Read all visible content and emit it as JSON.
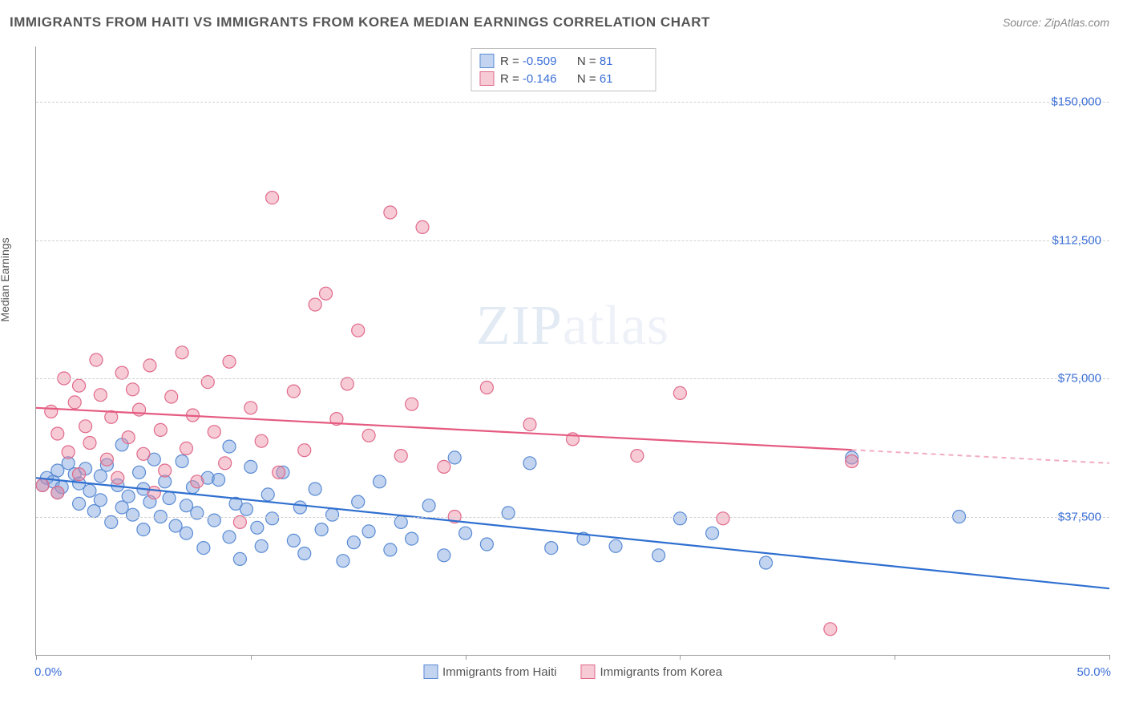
{
  "title": "IMMIGRANTS FROM HAITI VS IMMIGRANTS FROM KOREA MEDIAN EARNINGS CORRELATION CHART",
  "source": "Source: ZipAtlas.com",
  "ylabel": "Median Earnings",
  "watermark_a": "ZIP",
  "watermark_b": "atlas",
  "chart": {
    "type": "scatter",
    "xlim": [
      0,
      50
    ],
    "ylim": [
      0,
      165000
    ],
    "x_label_min": "0.0%",
    "x_label_max": "50.0%",
    "x_ticks": [
      0,
      10,
      20,
      30,
      40,
      50
    ],
    "y_gridlines": [
      37500,
      75000,
      112500,
      150000
    ],
    "y_gridline_labels": [
      "$37,500",
      "$75,000",
      "$112,500",
      "$150,000"
    ],
    "grid_color": "#d0d0d0",
    "background_color": "#ffffff",
    "series": [
      {
        "name": "Immigrants from Haiti",
        "fill": "rgba(120,160,220,0.45)",
        "stroke": "#5a8bd4",
        "line_color": "#2f6fd0",
        "R": "-0.509",
        "N": "81",
        "trend": {
          "x1": 0,
          "y1": 48000,
          "x2": 50,
          "y2": 18000,
          "dashed_from_x": null
        },
        "points": [
          [
            0.3,
            46000
          ],
          [
            0.5,
            48000
          ],
          [
            0.8,
            47000
          ],
          [
            1,
            50000
          ],
          [
            1,
            44000
          ],
          [
            1.2,
            45500
          ],
          [
            1.5,
            52000
          ],
          [
            1.8,
            49000
          ],
          [
            2,
            41000
          ],
          [
            2,
            46500
          ],
          [
            2.3,
            50500
          ],
          [
            2.5,
            44500
          ],
          [
            2.7,
            39000
          ],
          [
            3,
            48500
          ],
          [
            3,
            42000
          ],
          [
            3.3,
            51500
          ],
          [
            3.5,
            36000
          ],
          [
            3.8,
            46000
          ],
          [
            4,
            57000
          ],
          [
            4,
            40000
          ],
          [
            4.3,
            43000
          ],
          [
            4.5,
            38000
          ],
          [
            4.8,
            49500
          ],
          [
            5,
            45000
          ],
          [
            5,
            34000
          ],
          [
            5.3,
            41500
          ],
          [
            5.5,
            53000
          ],
          [
            5.8,
            37500
          ],
          [
            6,
            47000
          ],
          [
            6.2,
            42500
          ],
          [
            6.5,
            35000
          ],
          [
            6.8,
            52500
          ],
          [
            7,
            40500
          ],
          [
            7,
            33000
          ],
          [
            7.3,
            45500
          ],
          [
            7.5,
            38500
          ],
          [
            7.8,
            29000
          ],
          [
            8,
            48000
          ],
          [
            8.3,
            36500
          ],
          [
            8.5,
            47500
          ],
          [
            9,
            56500
          ],
          [
            9,
            32000
          ],
          [
            9.3,
            41000
          ],
          [
            9.5,
            26000
          ],
          [
            9.8,
            39500
          ],
          [
            10,
            51000
          ],
          [
            10.3,
            34500
          ],
          [
            10.5,
            29500
          ],
          [
            10.8,
            43500
          ],
          [
            11,
            37000
          ],
          [
            11.5,
            49500
          ],
          [
            12,
            31000
          ],
          [
            12.3,
            40000
          ],
          [
            12.5,
            27500
          ],
          [
            13,
            45000
          ],
          [
            13.3,
            34000
          ],
          [
            13.8,
            38000
          ],
          [
            14.3,
            25500
          ],
          [
            14.8,
            30500
          ],
          [
            15,
            41500
          ],
          [
            15.5,
            33500
          ],
          [
            16,
            47000
          ],
          [
            16.5,
            28500
          ],
          [
            17,
            36000
          ],
          [
            17.5,
            31500
          ],
          [
            18.3,
            40500
          ],
          [
            19,
            27000
          ],
          [
            19.5,
            53500
          ],
          [
            20,
            33000
          ],
          [
            21,
            30000
          ],
          [
            22,
            38500
          ],
          [
            23,
            52000
          ],
          [
            24,
            29000
          ],
          [
            25.5,
            31500
          ],
          [
            27,
            29500
          ],
          [
            29,
            27000
          ],
          [
            30,
            37000
          ],
          [
            31.5,
            33000
          ],
          [
            34,
            25000
          ],
          [
            38,
            53500
          ],
          [
            43,
            37500
          ]
        ]
      },
      {
        "name": "Immigrants from Korea",
        "fill": "rgba(235,140,165,0.45)",
        "stroke": "#e06a8a",
        "line_color": "#e55a80",
        "R": "-0.146",
        "N": "61",
        "trend": {
          "x1": 0,
          "y1": 67000,
          "x2": 50,
          "y2": 52000,
          "dashed_from_x": 38
        },
        "points": [
          [
            0.3,
            46000
          ],
          [
            0.7,
            66000
          ],
          [
            1,
            60000
          ],
          [
            1,
            44000
          ],
          [
            1.3,
            75000
          ],
          [
            1.5,
            55000
          ],
          [
            1.8,
            68500
          ],
          [
            2,
            73000
          ],
          [
            2,
            49000
          ],
          [
            2.3,
            62000
          ],
          [
            2.5,
            57500
          ],
          [
            2.8,
            80000
          ],
          [
            3,
            70500
          ],
          [
            3.3,
            53000
          ],
          [
            3.5,
            64500
          ],
          [
            3.8,
            48000
          ],
          [
            4,
            76500
          ],
          [
            4.3,
            59000
          ],
          [
            4.5,
            72000
          ],
          [
            4.8,
            66500
          ],
          [
            5,
            54500
          ],
          [
            5.3,
            78500
          ],
          [
            5.5,
            44000
          ],
          [
            5.8,
            61000
          ],
          [
            6,
            50000
          ],
          [
            6.3,
            70000
          ],
          [
            6.8,
            82000
          ],
          [
            7,
            56000
          ],
          [
            7.3,
            65000
          ],
          [
            7.5,
            47000
          ],
          [
            8,
            74000
          ],
          [
            8.3,
            60500
          ],
          [
            8.8,
            52000
          ],
          [
            9,
            79500
          ],
          [
            9.5,
            36000
          ],
          [
            10,
            67000
          ],
          [
            10.5,
            58000
          ],
          [
            11,
            124000
          ],
          [
            11.3,
            49500
          ],
          [
            12,
            71500
          ],
          [
            12.5,
            55500
          ],
          [
            13,
            95000
          ],
          [
            13.5,
            98000
          ],
          [
            14,
            64000
          ],
          [
            14.5,
            73500
          ],
          [
            15,
            88000
          ],
          [
            15.5,
            59500
          ],
          [
            16.5,
            120000
          ],
          [
            17,
            54000
          ],
          [
            17.5,
            68000
          ],
          [
            18,
            116000
          ],
          [
            19,
            51000
          ],
          [
            19.5,
            37500
          ],
          [
            21,
            72500
          ],
          [
            23,
            62500
          ],
          [
            25,
            58500
          ],
          [
            28,
            54000
          ],
          [
            30,
            71000
          ],
          [
            32,
            37000
          ],
          [
            38,
            52500
          ],
          [
            37,
            7000
          ]
        ]
      }
    ]
  }
}
